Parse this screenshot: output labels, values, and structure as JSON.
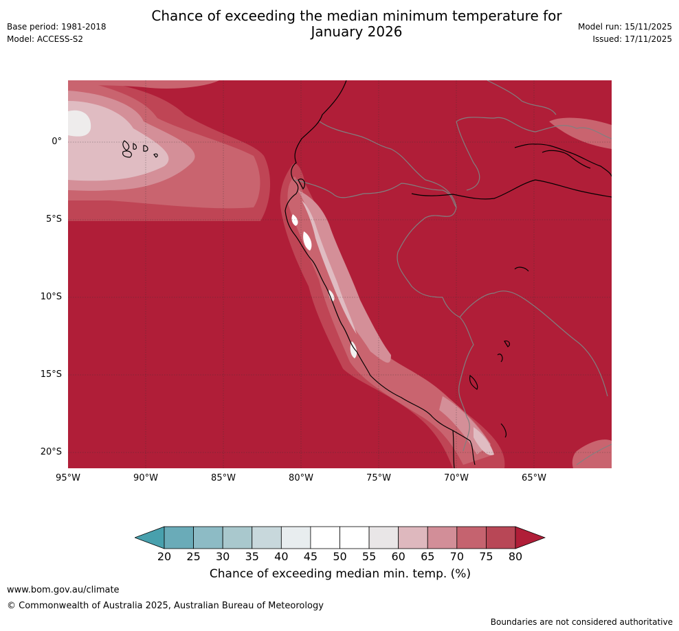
{
  "header": {
    "title_line1": "Chance of exceeding the median minimum temperature for",
    "title_line2": "January 2026",
    "base_period": "Base period: 1981-2018",
    "model": "Model: ACCESS-S2",
    "model_run": "Model run: 15/11/2025",
    "issued": "Issued: 17/11/2025"
  },
  "map": {
    "lat_labels": [
      "0°",
      "5°S",
      "10°S",
      "15°S",
      "20°S"
    ],
    "lon_labels": [
      "95°W",
      "90°W",
      "85°W",
      "80°W",
      "75°W",
      "70°W",
      "65°W"
    ],
    "region": "Western South America and Eastern Pacific"
  },
  "colorbar": {
    "ticks": [
      "20",
      "25",
      "30",
      "35",
      "40",
      "45",
      "50",
      "55",
      "60",
      "65",
      "70",
      "75",
      "80"
    ],
    "colors": [
      "#6aabb8",
      "#8dbbc5",
      "#a9c8cd",
      "#c8d8dc",
      "#e8edef",
      "#ffffff",
      "#ffffff",
      "#e9e6e7",
      "#deb8be",
      "#d28e98",
      "#c5636f",
      "#b84756"
    ],
    "under_color": "#48a0ad",
    "over_color": "#b01e38",
    "label": "Chance of exceeding median min. temp. (%)"
  },
  "footer": {
    "url": "www.bom.gov.au/climate",
    "copyright": "© Commonwealth of Australia 2025, Australian Bureau of Meteorology",
    "note": "Boundaries are not considered authoritative"
  }
}
